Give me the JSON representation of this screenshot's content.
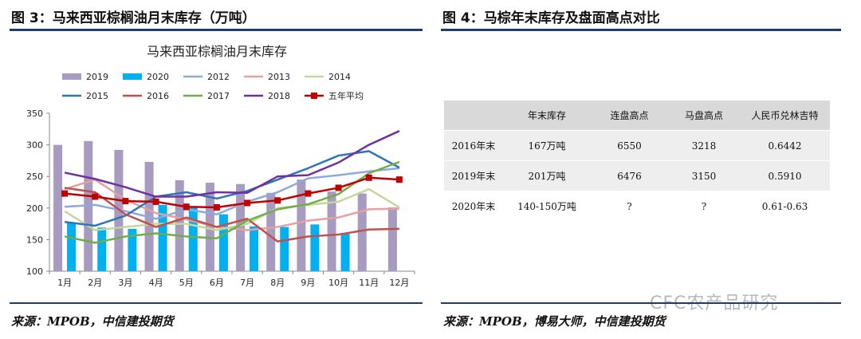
{
  "figure3": {
    "heading": "图 3：马来西亚棕榈油月末库存（万吨）",
    "source": "来源：MPOB，中信建投期货"
  },
  "figure4": {
    "heading": "图 4：马棕年末库存及盘面高点对比",
    "source": "来源：MPOB，博易大师，中信建投期货",
    "table": {
      "headers": [
        "",
        "年末库存",
        "连盘高点",
        "马盘高点",
        "人民币兑林吉特"
      ],
      "rows": [
        [
          "2016年末",
          "167万吨",
          "6550",
          "3218",
          "0.6442"
        ],
        [
          "2019年末",
          "201万吨",
          "6476",
          "3150",
          "0.5910"
        ],
        [
          "2020年末",
          "140-150万吨",
          "?",
          "?",
          "0.61-0.63"
        ]
      ]
    }
  },
  "watermark": "CFC农产品研究",
  "colors": {
    "rule": "#1f3b6e"
  },
  "chart_data": {
    "type": "bar",
    "title": "马来西亚棕榈油月末库存",
    "categories": [
      "1月",
      "2月",
      "3月",
      "4月",
      "5月",
      "6月",
      "7月",
      "8月",
      "9月",
      "10月",
      "11月",
      "12月"
    ],
    "ylim": [
      100,
      350
    ],
    "yticks": [
      100,
      150,
      200,
      250,
      300,
      350
    ],
    "grid": false,
    "legend": "top",
    "series": [
      {
        "name": "2019",
        "type": "bar",
        "color": "#a89bc0",
        "values": [
          300,
          306,
          292,
          273,
          244,
          240,
          238,
          224,
          245,
          226,
          223,
          201
        ]
      },
      {
        "name": "2020",
        "type": "bar",
        "color": "#00b0f0",
        "values": [
          176,
          169,
          167,
          205,
          201,
          190,
          171,
          170,
          174,
          160,
          null,
          null
        ]
      },
      {
        "name": "2012",
        "type": "line",
        "color": "#8ea9db",
        "values": [
          202,
          205,
          195,
          183,
          198,
          190,
          210,
          225,
          247,
          252,
          258,
          263
        ]
      },
      {
        "name": "2013",
        "type": "line",
        "color": "#e6a0a0",
        "values": [
          230,
          245,
          213,
          192,
          182,
          170,
          165,
          170,
          180,
          185,
          198,
          199
        ]
      },
      {
        "name": "2014",
        "type": "line",
        "color": "#c4d79b",
        "values": [
          195,
          165,
          170,
          175,
          175,
          165,
          175,
          200,
          205,
          210,
          230,
          201
        ]
      },
      {
        "name": "2015",
        "type": "line",
        "color": "#2e75b6",
        "values": [
          178,
          172,
          188,
          218,
          225,
          215,
          227,
          245,
          263,
          283,
          290,
          264
        ]
      },
      {
        "name": "2016",
        "type": "line",
        "color": "#c0504d",
        "values": [
          232,
          225,
          190,
          170,
          185,
          170,
          183,
          147,
          155,
          158,
          166,
          167
        ]
      },
      {
        "name": "2017",
        "type": "line",
        "color": "#70ad47",
        "values": [
          155,
          145,
          155,
          160,
          155,
          152,
          180,
          198,
          206,
          222,
          255,
          273
        ]
      },
      {
        "name": "2018",
        "type": "line",
        "color": "#7030a0",
        "values": [
          256,
          246,
          233,
          218,
          218,
          225,
          224,
          250,
          252,
          272,
          300,
          322
        ]
      },
      {
        "name": "五年平均",
        "type": "line",
        "marker": "square",
        "color": "#c00000",
        "values": [
          223,
          218,
          211,
          210,
          202,
          201,
          208,
          212,
          223,
          232,
          248,
          245
        ]
      }
    ]
  }
}
